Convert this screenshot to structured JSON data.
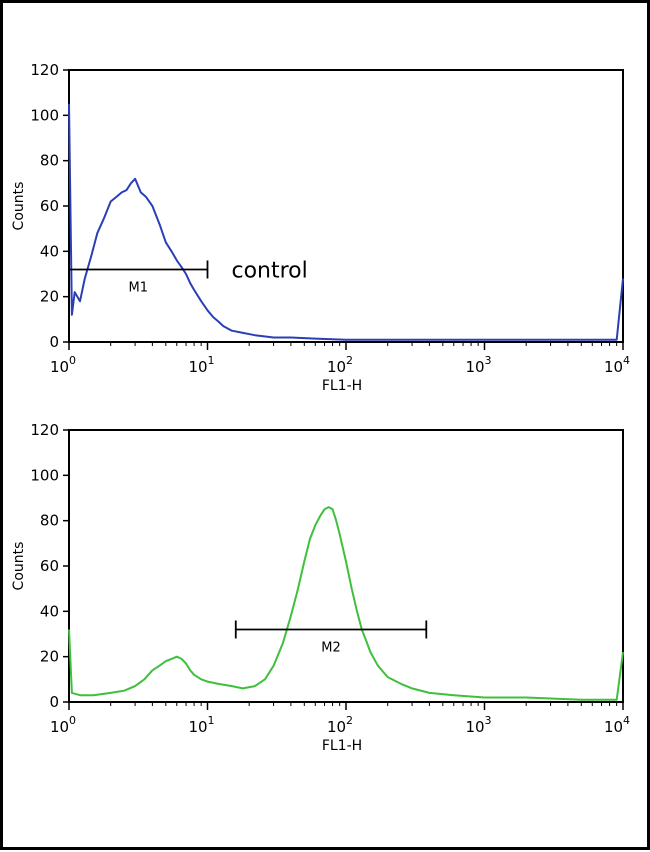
{
  "chart_data": [
    {
      "type": "line",
      "ylabel": "Counts",
      "xlabel": "FL1-H",
      "xscale": "log",
      "xlim": [
        1,
        10000
      ],
      "ylim": [
        0,
        120
      ],
      "yticks": [
        "0",
        "20",
        "40",
        "60",
        "80",
        "100",
        "120"
      ],
      "xticks": [
        {
          "base": "10",
          "exp": "0",
          "value": 1
        },
        {
          "base": "10",
          "exp": "1",
          "value": 10
        },
        {
          "base": "10",
          "exp": "2",
          "value": 100
        },
        {
          "base": "10",
          "exp": "3",
          "value": 1000
        },
        {
          "base": "10",
          "exp": "4",
          "value": 10000
        }
      ],
      "color": "#2b3fb5",
      "annotation": "control",
      "gate": {
        "label": "M1",
        "x_start": 1,
        "x_end": 10,
        "y": 32
      },
      "series": [
        {
          "x": [
            1,
            1.05,
            1.1,
            1.2,
            1.3,
            1.45,
            1.6,
            1.8,
            2.0,
            2.2,
            2.4,
            2.6,
            2.8,
            3.0,
            3.3,
            3.6,
            4.0,
            4.5,
            5.0,
            5.5,
            6.0,
            6.5,
            7.0,
            7.5,
            8.0,
            9.0,
            10,
            11,
            12,
            13,
            15,
            18,
            22,
            30,
            40,
            60,
            100,
            200,
            500,
            1000,
            2000,
            5000,
            9000,
            10000
          ],
          "y": [
            105,
            12,
            22,
            18,
            28,
            38,
            48,
            55,
            62,
            64,
            66,
            67,
            70,
            72,
            66,
            64,
            60,
            52,
            44,
            40,
            36,
            33,
            30,
            26,
            23,
            18,
            14,
            11,
            9,
            7,
            5,
            4,
            3,
            2,
            2,
            1.5,
            1,
            1,
            1,
            1,
            1,
            1,
            1,
            28
          ]
        }
      ]
    },
    {
      "type": "line",
      "ylabel": "Counts",
      "xlabel": "FL1-H",
      "xscale": "log",
      "xlim": [
        1,
        10000
      ],
      "ylim": [
        0,
        120
      ],
      "yticks": [
        "0",
        "20",
        "40",
        "60",
        "80",
        "100",
        "120"
      ],
      "xticks": [
        {
          "base": "10",
          "exp": "0",
          "value": 1
        },
        {
          "base": "10",
          "exp": "1",
          "value": 10
        },
        {
          "base": "10",
          "exp": "2",
          "value": 100
        },
        {
          "base": "10",
          "exp": "3",
          "value": 1000
        },
        {
          "base": "10",
          "exp": "4",
          "value": 10000
        }
      ],
      "color": "#3fc03c",
      "annotation": "",
      "gate": {
        "label": "M2",
        "x_start": 16,
        "x_end": 380,
        "y": 32
      },
      "series": [
        {
          "x": [
            1,
            1.05,
            1.2,
            1.5,
            2,
            2.5,
            3,
            3.5,
            4,
            4.5,
            5,
            5.5,
            6,
            6.5,
            7,
            7.5,
            8,
            9,
            10,
            12,
            15,
            18,
            22,
            26,
            30,
            35,
            40,
            45,
            50,
            55,
            60,
            65,
            70,
            75,
            80,
            85,
            90,
            100,
            110,
            120,
            130,
            140,
            150,
            170,
            200,
            250,
            300,
            400,
            600,
            1000,
            2000,
            5000,
            9000,
            10000
          ],
          "y": [
            32,
            4,
            3,
            3,
            4,
            5,
            7,
            10,
            14,
            16,
            18,
            19,
            20,
            19,
            17,
            14,
            12,
            10,
            9,
            8,
            7,
            6,
            7,
            10,
            16,
            26,
            38,
            50,
            62,
            72,
            78,
            82,
            85,
            86,
            85,
            80,
            74,
            62,
            50,
            40,
            32,
            27,
            22,
            16,
            11,
            8,
            6,
            4,
            3,
            2,
            2,
            1,
            1,
            22
          ]
        }
      ]
    }
  ]
}
